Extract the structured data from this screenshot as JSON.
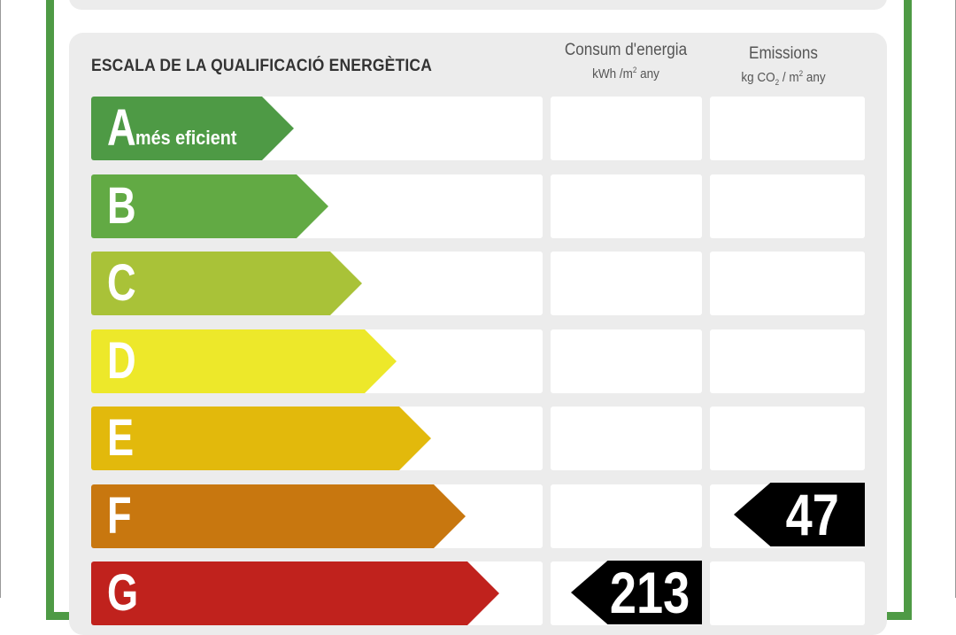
{
  "scale": {
    "title": "ESCALA DE LA QUALIFICACIÓ ENERGÈTICA"
  },
  "columns": {
    "energy": {
      "title": "Consum d'energia",
      "unit_a": "kWh /m",
      "unit_sup": "2",
      "unit_b": " any"
    },
    "emissions": {
      "title": "Emissions",
      "unit_a": "kg CO",
      "unit_sub": "2",
      "unit_mid": " / m",
      "unit_sup": "2",
      "unit_b": " any"
    }
  },
  "ratings": [
    {
      "letter": "A",
      "description": "més eficient",
      "color": "#4e9a45"
    },
    {
      "letter": "B",
      "description": "",
      "color": "#62aa44"
    },
    {
      "letter": "C",
      "description": "",
      "color": "#a9c238"
    },
    {
      "letter": "D",
      "description": "",
      "color": "#ede82a"
    },
    {
      "letter": "E",
      "description": "",
      "color": "#e2b90c"
    },
    {
      "letter": "F",
      "description": "",
      "color": "#c8770f"
    },
    {
      "letter": "G",
      "description": "",
      "color": "#c0221d"
    }
  ],
  "values": {
    "emissions": {
      "value": "47",
      "rating": "F"
    },
    "energy": {
      "value": "213",
      "rating": "G"
    }
  },
  "frame_color": "#4e9a45"
}
